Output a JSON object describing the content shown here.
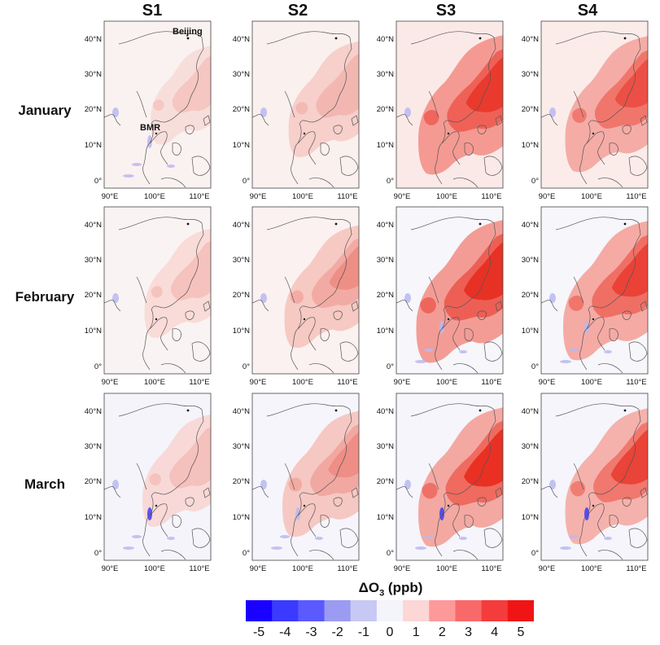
{
  "columns": [
    "S1",
    "S2",
    "S3",
    "S4"
  ],
  "rows": [
    "January",
    "February",
    "March"
  ],
  "lat_ticks": [
    "40°N",
    "30°N",
    "20°N",
    "10°N",
    "0°"
  ],
  "lon_ticks": [
    "90°E",
    "100°E",
    "110°E"
  ],
  "annotations": {
    "beijing": "Beijing",
    "bmr": "BMR"
  },
  "colorbar": {
    "title_prefix": "ΔO",
    "title_sub": "3",
    "title_suffix": " (ppb)",
    "ticks": [
      "-5",
      "-4",
      "-3",
      "-2",
      "-1",
      "0",
      "1",
      "2",
      "3",
      "4",
      "5"
    ],
    "colors": [
      "#1a00ff",
      "#3b3bff",
      "#5a5aff",
      "#9b9bf2",
      "#c8c8f4",
      "#f4f4fb",
      "#fdd6d6",
      "#fc9a9a",
      "#f86a6a",
      "#f43c3c",
      "#ef1515"
    ]
  },
  "panels": [
    [
      {
        "bg": "#faf2f1",
        "p1": "#f8d3d0",
        "p2": "#f4b4ae",
        "p3": null,
        "i1": 0.25,
        "i2": 0.1,
        "i3": 0,
        "blue": 0.3
      },
      {
        "bg": "#faf0ee",
        "p1": "#f6c7c2",
        "p2": "#f1aba4",
        "p3": null,
        "i1": 0.5,
        "i2": 0.25,
        "i3": 0,
        "blue": 0.2
      },
      {
        "bg": "#fbe9e8",
        "p1": "#f49a92",
        "p2": "#ee5c52",
        "p3": "#e83227",
        "i1": 0.85,
        "i2": 0.7,
        "i3": 0.55,
        "blue": 0.1
      },
      {
        "bg": "#fbecea",
        "p1": "#f5aaa4",
        "p2": "#ef6d63",
        "p3": "#ea3f35",
        "i1": 0.8,
        "i2": 0.6,
        "i3": 0.35,
        "blue": 0.1
      }
    ],
    [
      {
        "bg": "#faf3f3",
        "p1": "#f8d2ce",
        "p2": "#f3b0aa",
        "p3": null,
        "i1": 0.4,
        "i2": 0.15,
        "i3": 0,
        "blue": 0.2
      },
      {
        "bg": "#faf1f0",
        "p1": "#f6c2bc",
        "p2": "#f0a098",
        "p3": "#ec7e74",
        "i1": 0.6,
        "i2": 0.4,
        "i3": 0.2,
        "blue": 0.2
      },
      {
        "bg": "#f6f6fb",
        "p1": "#f39c95",
        "p2": "#ed5e54",
        "p3": "#e62c20",
        "i1": 0.9,
        "i2": 0.8,
        "i3": 0.65,
        "blue": 0.35
      },
      {
        "bg": "#f6f6fb",
        "p1": "#f5aaa4",
        "p2": "#ee6a60",
        "p3": "#e8372c",
        "i1": 0.85,
        "i2": 0.7,
        "i3": 0.5,
        "blue": 0.35
      }
    ],
    [
      {
        "bg": "#f5f4fb",
        "p1": "#f8d0cc",
        "p2": "#f3b2ac",
        "p3": null,
        "i1": 0.45,
        "i2": 0.2,
        "i3": 0,
        "blue": 0.7
      },
      {
        "bg": "#f6f5fb",
        "p1": "#f6c2bc",
        "p2": "#f09f97",
        "p3": "#ec8078",
        "i1": 0.65,
        "i2": 0.45,
        "i3": 0.25,
        "blue": 0.5
      },
      {
        "bg": "#f5f5fb",
        "p1": "#f4a8a2",
        "p2": "#ee665c",
        "p3": "#e7281c",
        "i1": 0.85,
        "i2": 0.75,
        "i3": 0.65,
        "blue": 0.6
      },
      {
        "bg": "#f5f5fb",
        "p1": "#f5b0aa",
        "p2": "#ef7066",
        "p3": "#e8382d",
        "i1": 0.8,
        "i2": 0.65,
        "i3": 0.55,
        "blue": 0.6
      }
    ]
  ]
}
